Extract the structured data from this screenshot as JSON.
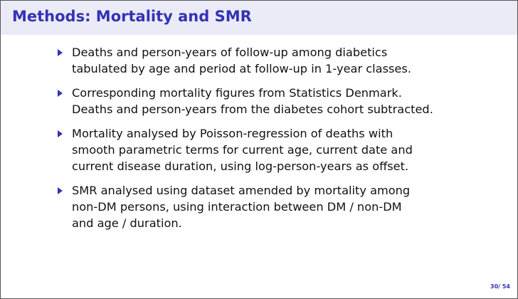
{
  "header": {
    "title": "Methods: Mortality and SMR"
  },
  "bullets": [
    {
      "lines": [
        "Deaths and person-years of follow-up among diabetics",
        "tabulated by age and period at follow-up in 1-year classes."
      ]
    },
    {
      "lines": [
        "Corresponding mortality figures from Statistics Denmark.",
        "Deaths and person-years from the diabetes cohort subtracted."
      ]
    },
    {
      "lines": [
        "Mortality analysed by Poisson-regression of deaths with",
        "smooth parametric terms for current age, current date and",
        "current disease duration, using log-person-years as offset."
      ]
    },
    {
      "lines": [
        "SMR analysed using dataset amended by mortality among",
        "non-DM persons, using interaction between DM / non-DM",
        "and age / duration."
      ]
    }
  ],
  "footer": {
    "page": "30/ 54"
  }
}
